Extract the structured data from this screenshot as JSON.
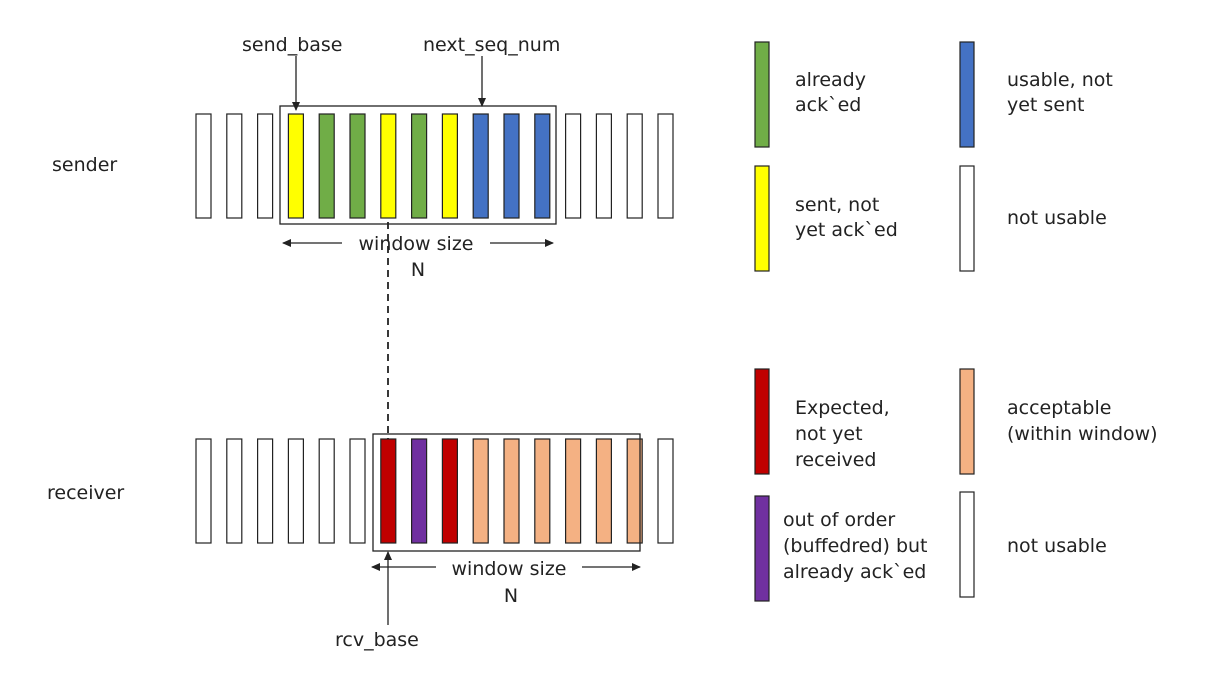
{
  "sender": {
    "label": "sender",
    "pointer_send_base": "send_base",
    "pointer_next_seq": "next_seq_num",
    "window_label": "window size",
    "window_n": "N",
    "slots": [
      "not-usable",
      "not-usable",
      "not-usable",
      "sent-not-acked",
      "already-acked",
      "already-acked",
      "sent-not-acked",
      "already-acked",
      "sent-not-acked",
      "usable-not-sent",
      "usable-not-sent",
      "usable-not-sent",
      "not-usable",
      "not-usable",
      "not-usable",
      "not-usable"
    ]
  },
  "receiver": {
    "label": "receiver",
    "pointer_rcv_base": "rcv_base",
    "window_label": "window size",
    "window_n": "N",
    "slots": [
      "not-usable",
      "not-usable",
      "not-usable",
      "not-usable",
      "not-usable",
      "not-usable",
      "expected",
      "out-of-order",
      "expected",
      "acceptable",
      "acceptable",
      "acceptable",
      "acceptable",
      "acceptable",
      "acceptable",
      "not-usable"
    ]
  },
  "colors": {
    "already-acked": "#70ad47",
    "sent-not-acked": "#ffff00",
    "usable-not-sent": "#4472c4",
    "not-usable": "#ffffff",
    "expected": "#c00000",
    "out-of-order": "#7030a0",
    "acceptable": "#f4b183"
  },
  "legend_sender": {
    "already_acked": [
      "already",
      "ack`ed"
    ],
    "usable_not_sent": [
      "usable, not",
      "yet sent"
    ],
    "sent_not_acked": [
      "sent, not",
      "yet ack`ed"
    ],
    "not_usable": [
      "not usable"
    ]
  },
  "legend_receiver": {
    "expected": [
      "Expected,",
      "not yet",
      "received"
    ],
    "acceptable": [
      "acceptable",
      "(within window)"
    ],
    "out_of_order": [
      "out of order",
      "(buffedred) but",
      "already ack`ed"
    ],
    "not_usable": [
      "not usable"
    ]
  }
}
